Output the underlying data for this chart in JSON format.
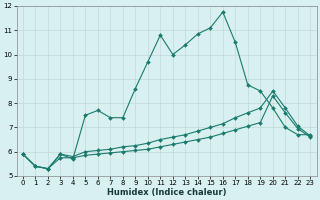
{
  "xlabel": "Humidex (Indice chaleur)",
  "line1": [
    5.9,
    5.4,
    5.3,
    5.9,
    5.7,
    7.5,
    7.7,
    7.4,
    7.4,
    8.6,
    9.7,
    10.8,
    10.0,
    10.4,
    10.85,
    11.1,
    11.75,
    10.5,
    8.75,
    8.5,
    7.8,
    7.0,
    6.7,
    6.7
  ],
  "line2_x": [
    0,
    1,
    2,
    3,
    4,
    5,
    6,
    7,
    8,
    9,
    10,
    11,
    12,
    13,
    14,
    15,
    16,
    17,
    18,
    19,
    20,
    21,
    22,
    23
  ],
  "line2_y": [
    5.9,
    5.4,
    5.3,
    5.9,
    5.8,
    6.0,
    6.05,
    6.1,
    6.2,
    6.25,
    6.35,
    6.5,
    6.6,
    6.7,
    6.85,
    7.0,
    7.15,
    7.4,
    7.6,
    7.8,
    8.5,
    7.8,
    7.05,
    6.65
  ],
  "line3_x": [
    0,
    1,
    2,
    3,
    4,
    5,
    6,
    7,
    8,
    9,
    10,
    11,
    12,
    13,
    14,
    15,
    16,
    17,
    18,
    19,
    20,
    21,
    22,
    23
  ],
  "line3_y": [
    5.9,
    5.4,
    5.3,
    5.75,
    5.75,
    5.85,
    5.9,
    5.95,
    6.0,
    6.05,
    6.1,
    6.2,
    6.3,
    6.4,
    6.5,
    6.6,
    6.75,
    6.9,
    7.05,
    7.2,
    8.3,
    7.6,
    6.95,
    6.6
  ],
  "line_color": "#1a7a6e",
  "bg_color": "#d8f0f0",
  "grid_color": "#c0d8d8",
  "ylim": [
    5,
    12
  ],
  "xlim": [
    -0.5,
    23.5
  ],
  "yticks": [
    5,
    6,
    7,
    8,
    9,
    10,
    11,
    12
  ],
  "xticks": [
    0,
    1,
    2,
    3,
    4,
    5,
    6,
    7,
    8,
    9,
    10,
    11,
    12,
    13,
    14,
    15,
    16,
    17,
    18,
    19,
    20,
    21,
    22,
    23
  ]
}
